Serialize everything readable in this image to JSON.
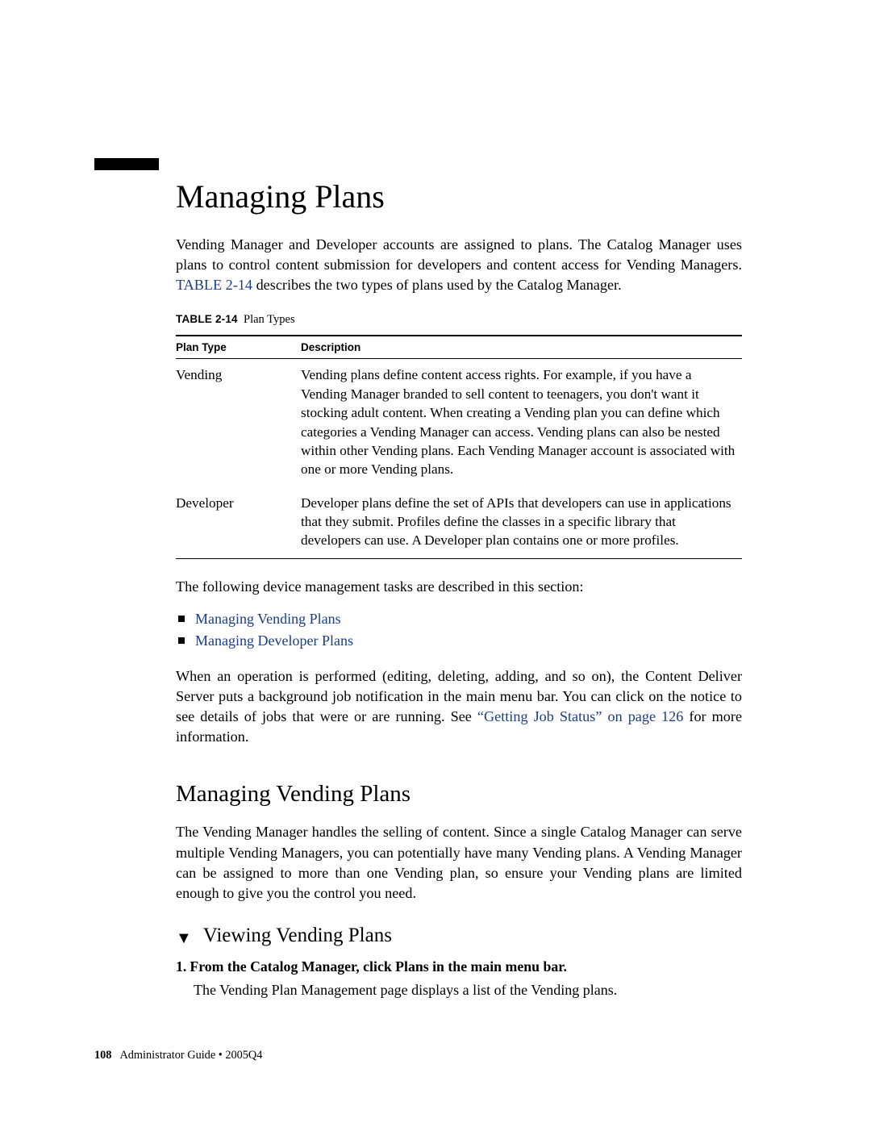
{
  "heading": {
    "title": "Managing Plans"
  },
  "intro": {
    "part1": "Vending Manager and Developer accounts are assigned to plans. The Catalog Manager uses plans to control content submission for developers and content access for Vending Managers. ",
    "table_ref": "TABLE 2-14",
    "part2": " describes the two types of plans used by the Catalog Manager."
  },
  "table": {
    "label": "TABLE 2-14",
    "caption": "Plan Types",
    "columns": {
      "c1": "Plan Type",
      "c2": "Description"
    },
    "rows": [
      {
        "type": "Vending",
        "desc": "Vending plans define content access rights. For example, if you have a Vending Manager branded to sell content to teenagers, you don't want it stocking adult content. When creating a Vending plan you can define which categories a Vending Manager can access. Vending plans can also be nested within other Vending plans. Each Vending Manager account is associated with one or more Vending plans."
      },
      {
        "type": "Developer",
        "desc": "Developer plans define the set of APIs that developers can use in applications that they submit. Profiles define the classes in a specific library that developers can use. A Developer plan contains one or more profiles."
      }
    ]
  },
  "tasks_intro": "The following device management tasks are described in this section:",
  "tasks": {
    "item1": "Managing Vending Plans",
    "item2": "Managing Developer Plans"
  },
  "op_note": {
    "part1": "When an operation is performed (editing, deleting, adding, and so on), the Content Deliver Server puts a background job notification in the main menu bar. You can click on the notice to see details of jobs that were or are running. See ",
    "link": "“Getting Job Status” on page 126",
    "part2": " for more information."
  },
  "subsection": {
    "title": "Managing Vending Plans",
    "body": "The Vending Manager handles the selling of content. Since a single Catalog Manager can serve multiple Vending Managers, you can potentially have many Vending plans. A Vending Manager can be assigned to more than one Vending plan, so ensure your Vending plans are limited enough to give you the control you need."
  },
  "procedure": {
    "title": "Viewing Vending Plans",
    "step1_num": "1.",
    "step1": "From the Catalog Manager, click Plans in the main menu bar.",
    "step1_body": "The Vending Plan Management page displays a list of the Vending plans."
  },
  "footer": {
    "page": "108",
    "text": "Administrator Guide • 2005Q4"
  },
  "colors": {
    "link": "#1a3e8b",
    "text": "#000000",
    "background": "#ffffff"
  }
}
